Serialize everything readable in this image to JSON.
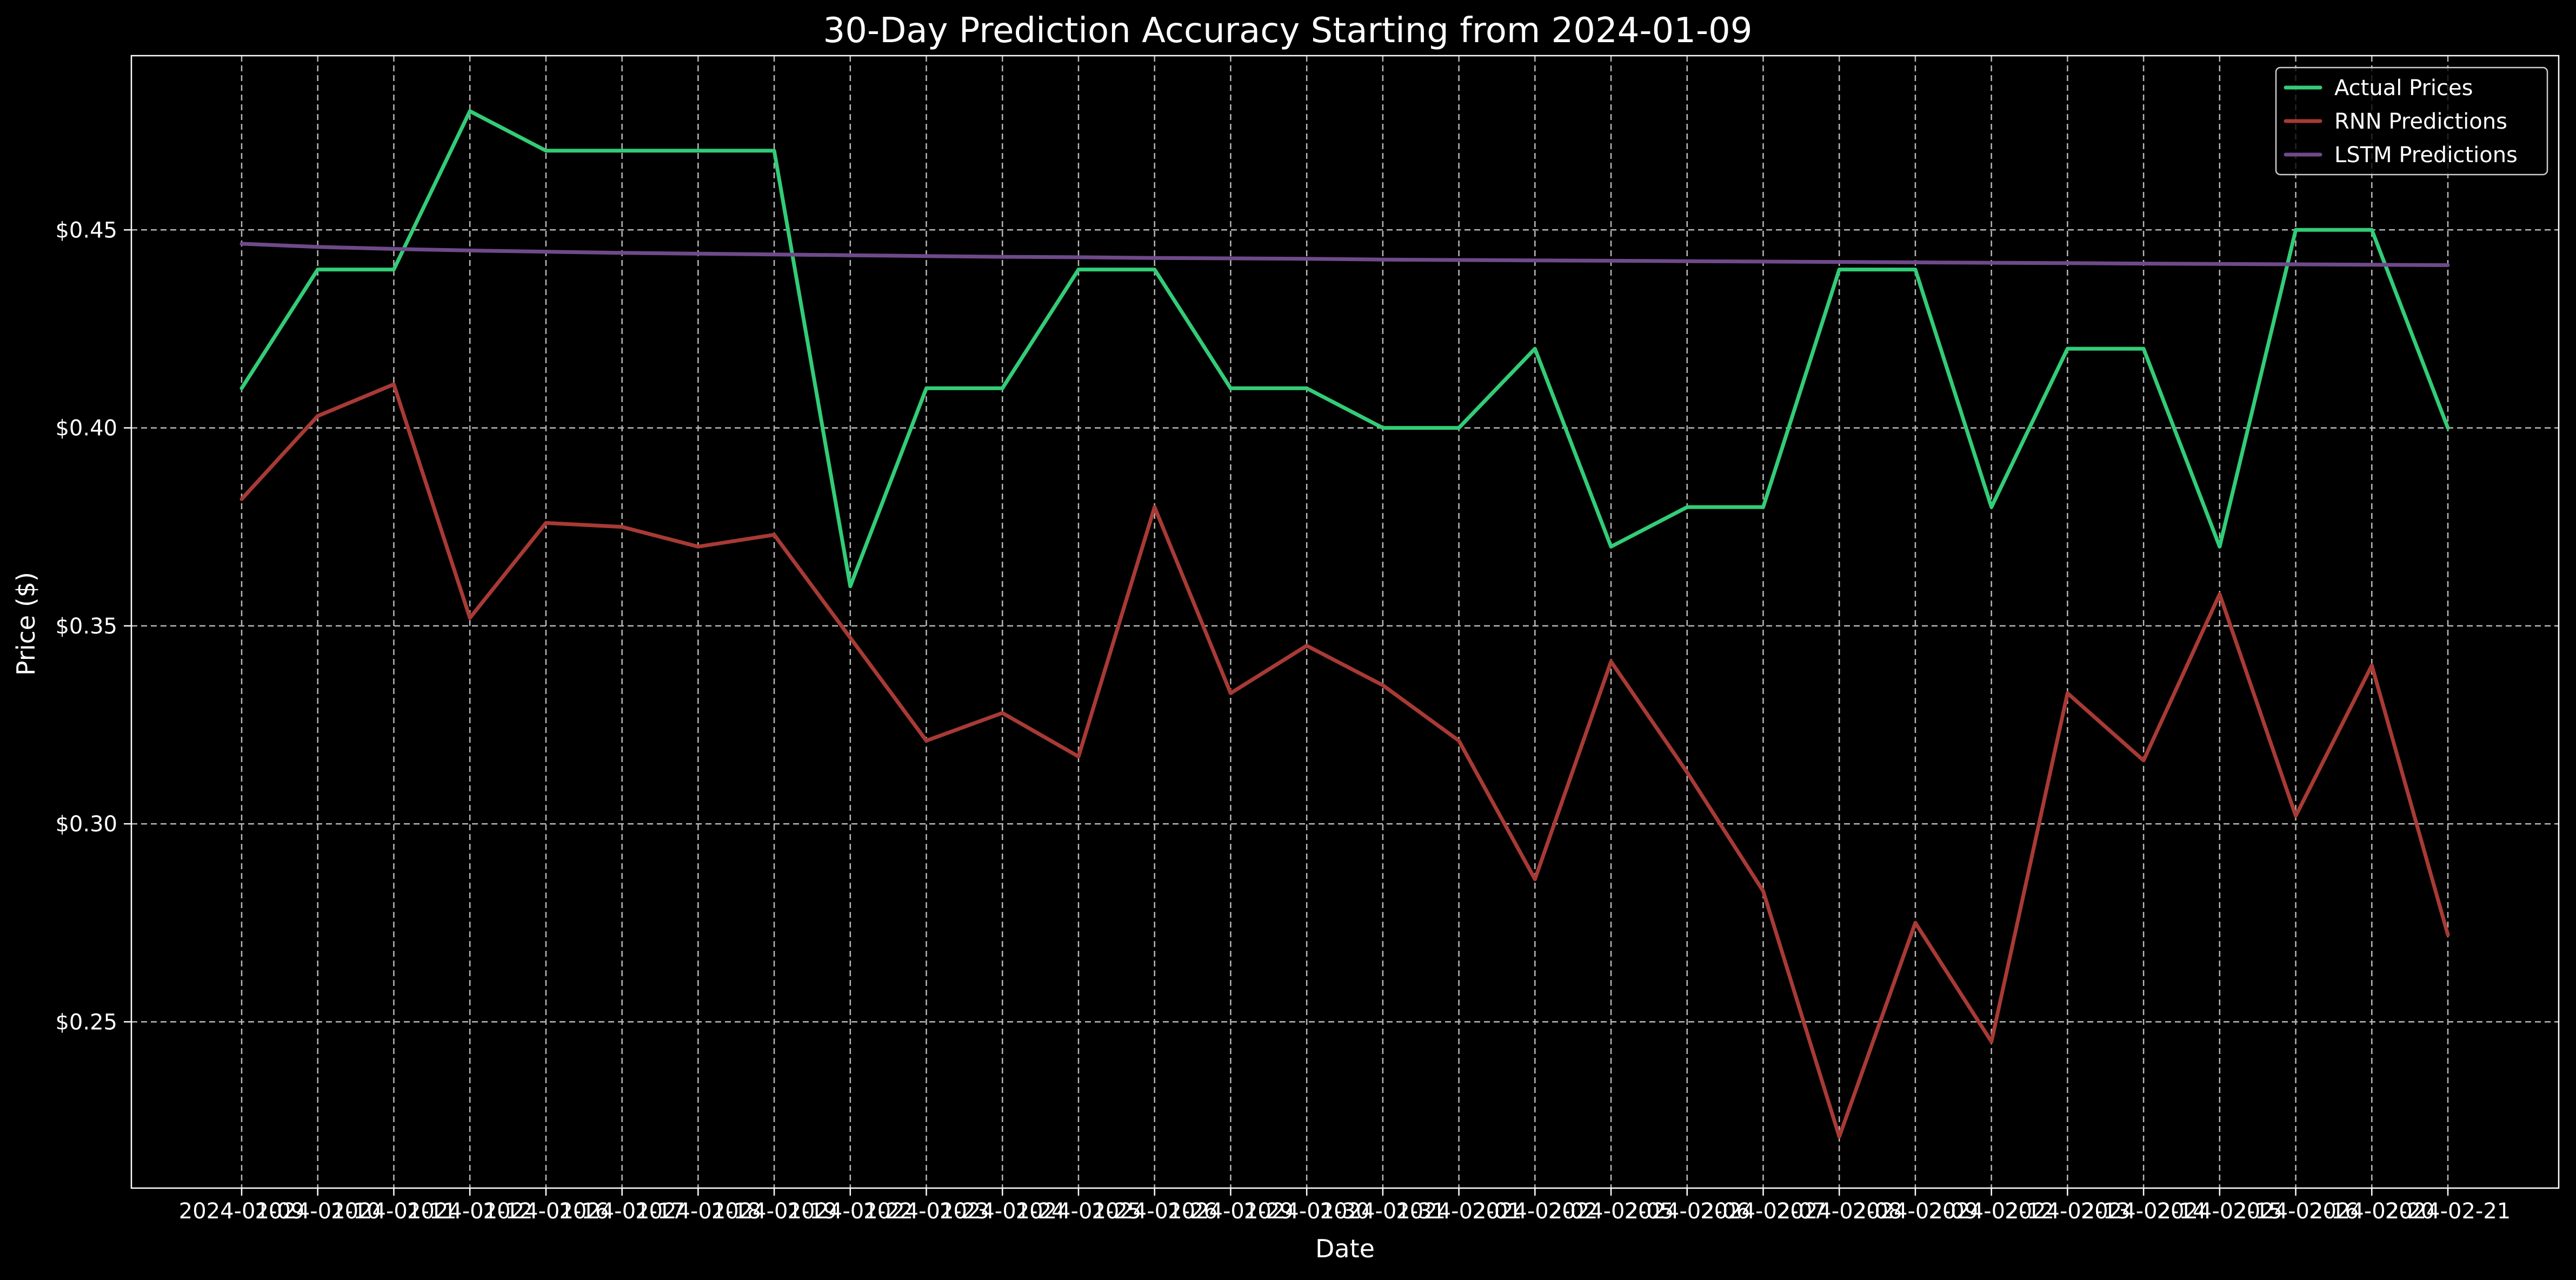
{
  "chart_data": {
    "type": "line",
    "title": "30-Day Prediction Accuracy Starting from 2024-01-09",
    "xlabel": "Date",
    "ylabel": "Price ($)",
    "ylim": [
      0.208,
      0.494
    ],
    "y_ticks": [
      0.25,
      0.3,
      0.35,
      0.4,
      0.45
    ],
    "y_tick_labels": [
      "$0.25",
      "$0.30",
      "$0.35",
      "$0.40",
      "$0.45"
    ],
    "x": [
      "2024-01-09",
      "2024-01-10",
      "2024-01-11",
      "2024-01-12",
      "2024-01-16",
      "2024-01-17",
      "2024-01-18",
      "2024-01-19",
      "2024-01-22",
      "2024-01-23",
      "2024-01-24",
      "2024-01-25",
      "2024-01-26",
      "2024-01-29",
      "2024-01-30",
      "2024-01-31",
      "2024-02-01",
      "2024-02-02",
      "2024-02-05",
      "2024-02-06",
      "2024-02-07",
      "2024-02-08",
      "2024-02-09",
      "2024-02-12",
      "2024-02-13",
      "2024-02-14",
      "2024-02-15",
      "2024-02-16",
      "2024-02-20",
      "2024-02-21"
    ],
    "grid": true,
    "legend_position": "top-right",
    "series": [
      {
        "name": "Actual Prices",
        "color": "#33cc77",
        "values": [
          0.41,
          0.44,
          0.44,
          0.48,
          0.47,
          0.47,
          0.47,
          0.47,
          0.36,
          0.41,
          0.41,
          0.44,
          0.44,
          0.41,
          0.41,
          0.4,
          0.4,
          0.42,
          0.37,
          0.38,
          0.38,
          0.44,
          0.44,
          0.38,
          0.42,
          0.42,
          0.37,
          0.45,
          0.45,
          0.4
        ]
      },
      {
        "name": "RNN Predictions",
        "color": "#a83a35",
        "values": [
          0.382,
          0.403,
          0.411,
          0.352,
          0.376,
          0.375,
          0.37,
          0.373,
          0.347,
          0.321,
          0.328,
          0.317,
          0.38,
          0.333,
          0.345,
          0.335,
          0.321,
          0.286,
          0.341,
          0.313,
          0.283,
          0.221,
          0.275,
          0.245,
          0.333,
          0.316,
          0.358,
          0.302,
          0.34,
          0.272
        ]
      },
      {
        "name": "LSTM Predictions",
        "color": "#6f4a8a",
        "values": [
          0.4465,
          0.4457,
          0.4452,
          0.4448,
          0.4445,
          0.4442,
          0.444,
          0.4438,
          0.4436,
          0.4434,
          0.4432,
          0.4431,
          0.4429,
          0.4428,
          0.4427,
          0.4425,
          0.4424,
          0.4423,
          0.4422,
          0.4421,
          0.442,
          0.4419,
          0.4418,
          0.4417,
          0.4416,
          0.4415,
          0.4414,
          0.4413,
          0.4412,
          0.4411
        ]
      }
    ]
  }
}
